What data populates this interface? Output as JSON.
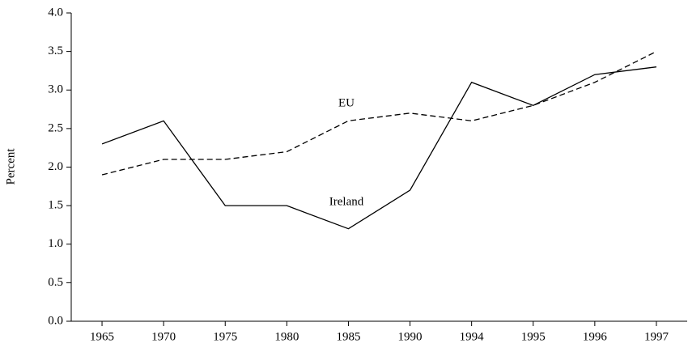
{
  "chart_data": {
    "type": "line",
    "ylabel": "Percent",
    "categories": [
      "1965",
      "1970",
      "1975",
      "1980",
      "1985",
      "1990",
      "1994",
      "1995",
      "1996",
      "1997"
    ],
    "series": [
      {
        "name": "Ireland",
        "color": "#000000",
        "linestyle": "solid",
        "values": [
          2.3,
          2.6,
          1.5,
          1.5,
          1.2,
          1.7,
          3.1,
          2.8,
          3.2,
          3.3
        ]
      },
      {
        "name": "EU",
        "color": "#000000",
        "linestyle": "dashed",
        "values": [
          1.9,
          2.1,
          2.1,
          2.2,
          2.6,
          2.7,
          2.6,
          2.8,
          3.1,
          3.5
        ]
      }
    ],
    "ylim": [
      0,
      4
    ],
    "yticks": [
      {
        "value": 0,
        "label": "0.0"
      },
      {
        "value": 0.5,
        "label": "0.5"
      },
      {
        "value": 1,
        "label": "1.0"
      },
      {
        "value": 1.5,
        "label": "1.5"
      },
      {
        "value": 2,
        "label": "2.0"
      },
      {
        "value": 2.5,
        "label": "2.5"
      },
      {
        "value": 3,
        "label": "3.0"
      },
      {
        "value": 3.5,
        "label": "3.5"
      },
      {
        "value": 4,
        "label": "4.0"
      }
    ],
    "grid": false
  }
}
